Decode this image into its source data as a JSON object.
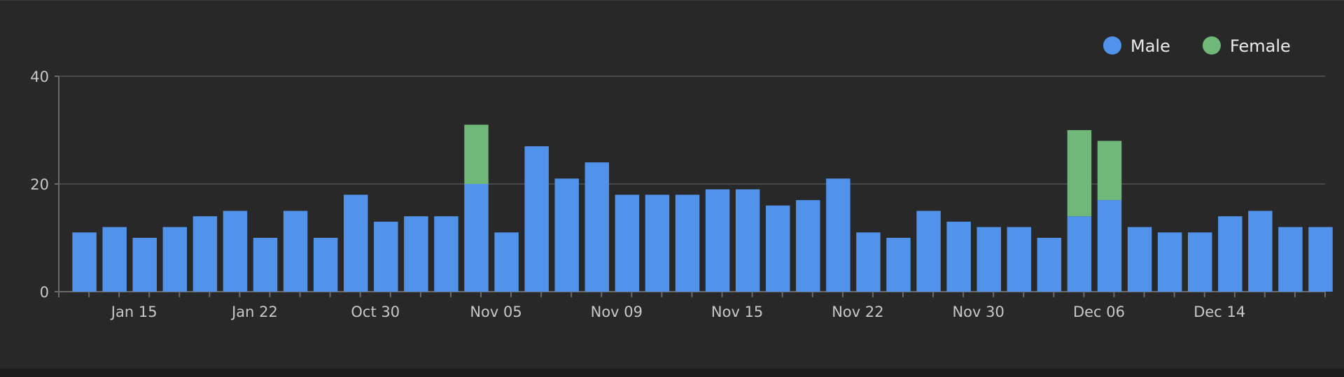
{
  "chart_data": {
    "type": "bar",
    "stacked": true,
    "title": "",
    "xlabel": "",
    "ylabel": "",
    "ylim": [
      0,
      40
    ],
    "yticks": [
      0,
      20,
      40
    ],
    "grid": true,
    "legend_position": "top-right",
    "categories": [
      "",
      "",
      "Jan 15",
      "",
      "",
      "",
      "Jan 22",
      "",
      "",
      "",
      "Oct 30",
      "",
      "",
      "",
      "Nov 05",
      "",
      "",
      "",
      "Nov 09",
      "",
      "",
      "",
      "Nov 15",
      "",
      "",
      "",
      "Nov 22",
      "",
      "",
      "",
      "Nov 30",
      "",
      "",
      "",
      "Dec 06",
      "",
      "",
      "",
      "Dec 14",
      "",
      "",
      ""
    ],
    "series": [
      {
        "name": "Male",
        "color": "#5193ea",
        "values": [
          11,
          12,
          10,
          12,
          14,
          15,
          10,
          15,
          10,
          18,
          13,
          14,
          14,
          20,
          11,
          27,
          21,
          24,
          18,
          18,
          18,
          19,
          19,
          16,
          17,
          21,
          11,
          10,
          15,
          13,
          12,
          12,
          10,
          14,
          17,
          12,
          11,
          11,
          14,
          15,
          12,
          12
        ]
      },
      {
        "name": "Female",
        "color": "#70b87a",
        "values": [
          0,
          0,
          0,
          0,
          0,
          0,
          0,
          0,
          0,
          0,
          0,
          0,
          0,
          11,
          0,
          0,
          0,
          0,
          0,
          0,
          0,
          0,
          0,
          0,
          0,
          0,
          0,
          0,
          0,
          0,
          0,
          0,
          0,
          16,
          11,
          0,
          0,
          0,
          0,
          0,
          0,
          0
        ]
      }
    ]
  }
}
